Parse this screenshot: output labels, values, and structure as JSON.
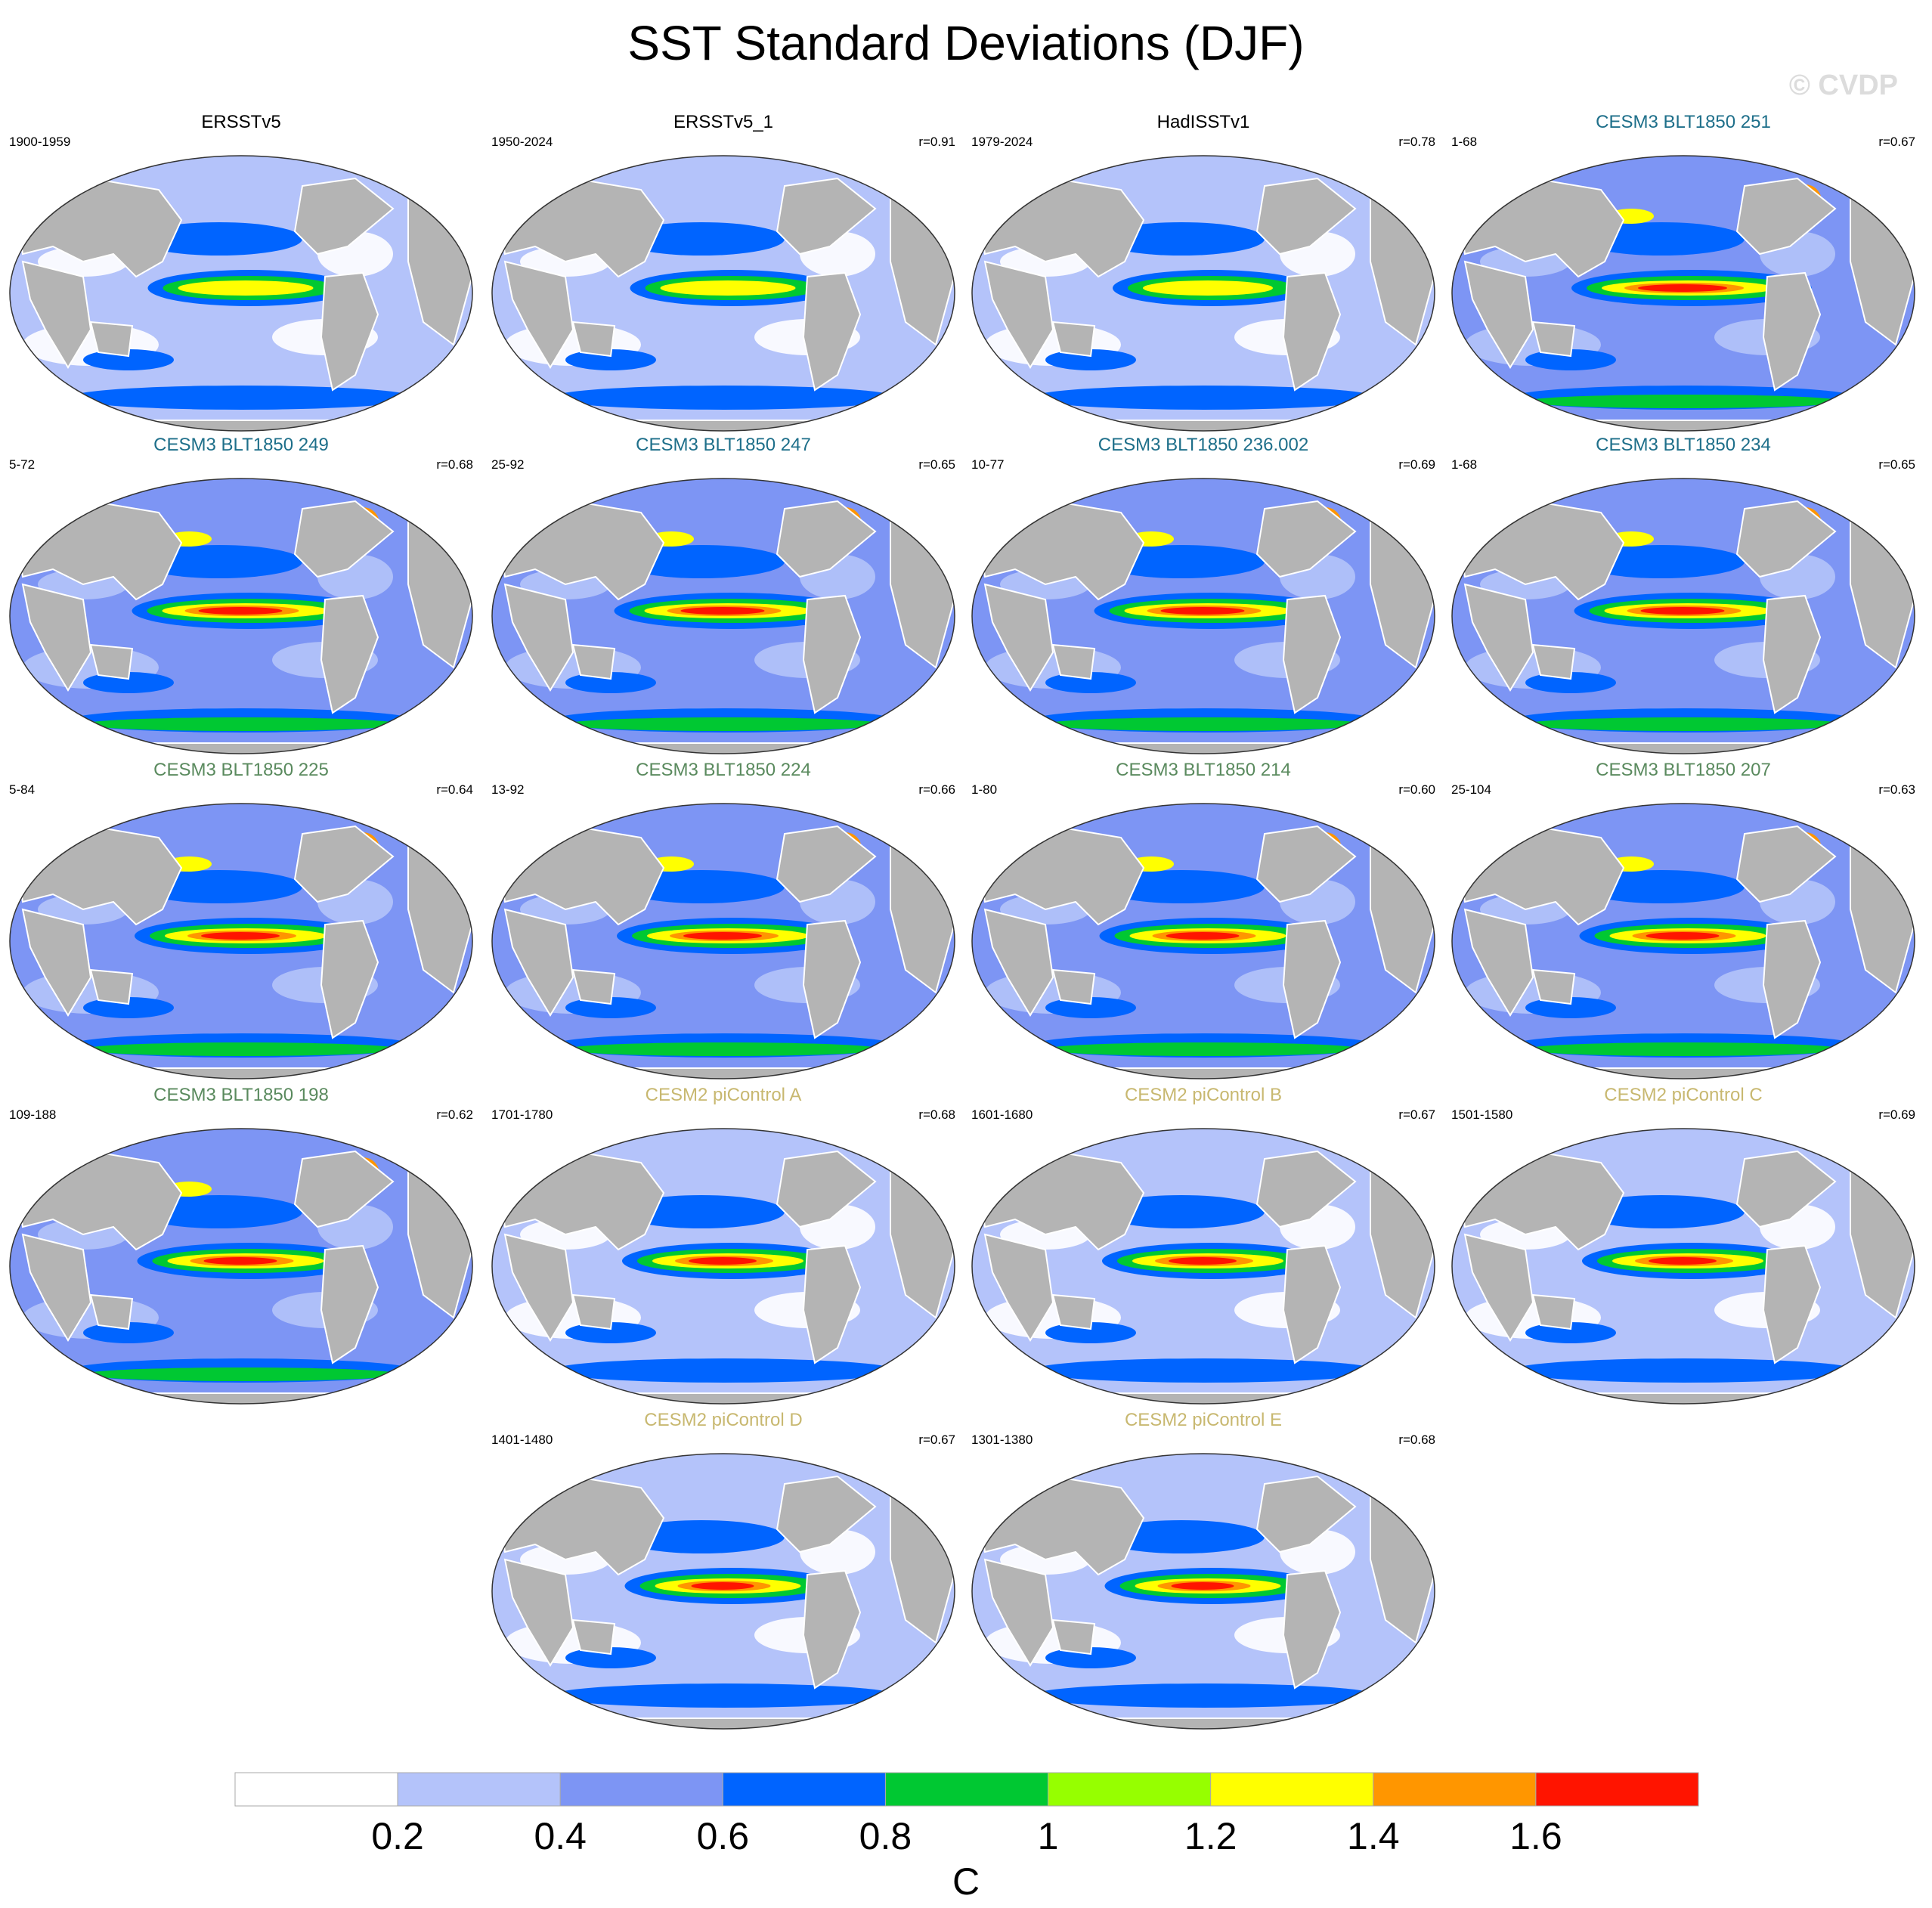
{
  "title": "SST Standard Deviations (DJF)",
  "watermark": "© CVDP",
  "colors": {
    "obs_title": "#000000",
    "cesm3_teal": "#1e6f8a",
    "cesm3_green": "#5a8a5e",
    "cesm2_tan": "#c8b870",
    "land": "#b4b4b4",
    "coast": "#ffffff"
  },
  "panels": [
    {
      "title": "ERSSTv5",
      "years": "1900-1959",
      "r": "",
      "group": "obs",
      "level": 0.35
    },
    {
      "title": "ERSSTv5_1",
      "years": "1950-2024",
      "r": "r=0.91",
      "group": "obs",
      "level": 0.35
    },
    {
      "title": "HadISSTv1",
      "years": "1979-2024",
      "r": "r=0.78",
      "group": "obs",
      "level": 0.3
    },
    {
      "title": "CESM3 BLT1850 251",
      "years": "1-68",
      "r": "r=0.67",
      "group": "cesm3_teal",
      "level": 0.7
    },
    {
      "title": "CESM3 BLT1850 249",
      "years": "5-72",
      "r": "r=0.68",
      "group": "cesm3_teal",
      "level": 0.65
    },
    {
      "title": "CESM3 BLT1850 247",
      "years": "25-92",
      "r": "r=0.65",
      "group": "cesm3_teal",
      "level": 0.65
    },
    {
      "title": "CESM3 BLT1850 236.002",
      "years": "10-77",
      "r": "r=0.69",
      "group": "cesm3_teal",
      "level": 0.65
    },
    {
      "title": "CESM3 BLT1850 234",
      "years": "1-68",
      "r": "r=0.65",
      "group": "cesm3_teal",
      "level": 0.65
    },
    {
      "title": "CESM3 BLT1850 225",
      "years": "5-84",
      "r": "r=0.64",
      "group": "cesm3_green",
      "level": 0.6
    },
    {
      "title": "CESM3 BLT1850 224",
      "years": "13-92",
      "r": "r=0.66",
      "group": "cesm3_green",
      "level": 0.6
    },
    {
      "title": "CESM3 BLT1850 214",
      "years": "1-80",
      "r": "r=0.60",
      "group": "cesm3_green",
      "level": 0.55
    },
    {
      "title": "CESM3 BLT1850 207",
      "years": "25-104",
      "r": "r=0.63",
      "group": "cesm3_green",
      "level": 0.55
    },
    {
      "title": "CESM3 BLT1850 198",
      "years": "109-188",
      "r": "r=0.62",
      "group": "cesm3_green",
      "level": 0.55
    },
    {
      "title": "CESM2 piControl A",
      "years": "1701-1780",
      "r": "r=0.68",
      "group": "cesm2_tan",
      "level": 0.5
    },
    {
      "title": "CESM2 piControl B",
      "years": "1601-1680",
      "r": "r=0.67",
      "group": "cesm2_tan",
      "level": 0.5
    },
    {
      "title": "CESM2 piControl C",
      "years": "1501-1580",
      "r": "r=0.69",
      "group": "cesm2_tan",
      "level": 0.5
    },
    {
      "title": "CESM2 piControl D",
      "years": "1401-1480",
      "r": "r=0.67",
      "group": "cesm2_tan",
      "level": 0.45
    },
    {
      "title": "CESM2 piControl E",
      "years": "1301-1380",
      "r": "r=0.68",
      "group": "cesm2_tan",
      "level": 0.45
    }
  ],
  "chart_data": {
    "type": "heatmap",
    "title": "SST Standard Deviations (DJF)",
    "projection": "Robinson global maps, 18 panels",
    "colorbar": {
      "unit": "C",
      "levels": [
        0.2,
        0.4,
        0.6,
        0.8,
        1,
        1.2,
        1.4,
        1.6
      ],
      "tick_labels": [
        "0.2",
        "0.4",
        "0.6",
        "0.8",
        "1",
        "1.2",
        "1.4",
        "1.6"
      ],
      "colors": [
        "#ffffff",
        "#b4c3fa",
        "#7d95f4",
        "#0064ff",
        "#00c832",
        "#96ff00",
        "#ffff00",
        "#ff9600",
        "#ff1400"
      ]
    }
  }
}
